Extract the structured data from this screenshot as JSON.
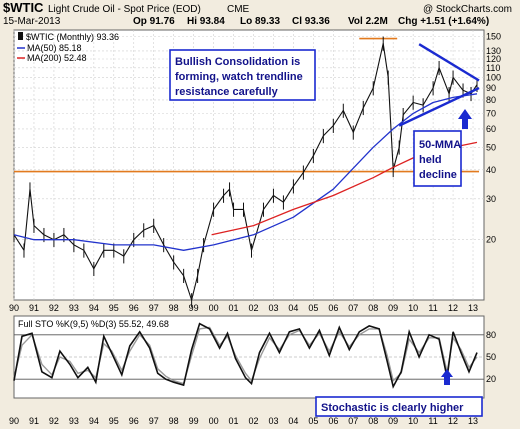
{
  "header": {
    "symbol": "$WTIC",
    "title": "Light Crude Oil - Spot Price (EOD)",
    "exchange": "CME",
    "date": "15-Mar-2013",
    "op": "Op 91.76",
    "hi": "Hi 93.84",
    "lo": "Lo 89.33",
    "cl": "Cl 93.36",
    "vol": "Vol 2.2M",
    "chg": "Chg +1.51 (+1.64%)",
    "watermark": "@ StockCharts.com"
  },
  "legend": {
    "price": "$WTIC (Monthly) 93.36",
    "ma50": "MA(50) 85.18",
    "ma200": "MA(200) 52.48"
  },
  "annotations": {
    "consolidation": [
      "Bullish Consolidation is",
      "forming, watch trendline",
      "resistance carefully"
    ],
    "ma_note": [
      "50-MMA",
      "held",
      "decline"
    ],
    "stoch_note": "Stochastic is clearly higher"
  },
  "colors": {
    "price_bars": "#111111",
    "ma50": "#2233cc",
    "ma200": "#dd2222",
    "support_line": "#e27a1e",
    "trendlines": "#1a2ad0",
    "annotation_border": "#1a2ad0",
    "annotation_text": "#12128a",
    "panel_bg": "#ffffff",
    "frame_bg": "#f2ecdf"
  },
  "chart_data": {
    "type": "line",
    "log_scale": true,
    "x_tick_labels": [
      "90",
      "91",
      "92",
      "93",
      "94",
      "95",
      "96",
      "97",
      "98",
      "99",
      "00",
      "01",
      "02",
      "03",
      "04",
      "05",
      "06",
      "07",
      "08",
      "09",
      "10",
      "11",
      "12",
      "13"
    ],
    "y_tick_labels": [
      "150",
      "130",
      "120",
      "110",
      "100",
      "90",
      "80",
      "70",
      "60",
      "50",
      "40",
      "30",
      "20"
    ],
    "ylim": [
      11,
      160
    ],
    "series": [
      {
        "name": "$WTIC (Monthly)",
        "x": [
          1990.0,
          1990.5,
          1990.8,
          1991.0,
          1991.5,
          1992.0,
          1992.5,
          1993.0,
          1993.5,
          1994.0,
          1994.5,
          1995.0,
          1995.5,
          1996.0,
          1996.5,
          1997.0,
          1997.5,
          1998.0,
          1998.5,
          1998.9,
          1999.2,
          1999.5,
          2000.0,
          2000.5,
          2000.8,
          2001.0,
          2001.5,
          2001.9,
          2002.5,
          2003.0,
          2003.5,
          2004.0,
          2004.5,
          2005.0,
          2005.5,
          2006.0,
          2006.5,
          2007.0,
          2007.5,
          2008.0,
          2008.5,
          2008.75,
          2009.0,
          2009.3,
          2009.5,
          2010.0,
          2010.5,
          2011.0,
          2011.3,
          2011.8,
          2012.0,
          2012.5,
          2012.9,
          2013.2
        ],
        "values": [
          21,
          18,
          33,
          23,
          21,
          20,
          21,
          19,
          18,
          15,
          18,
          18,
          17,
          20,
          22,
          23,
          19,
          16,
          14,
          11,
          14,
          19,
          27,
          31,
          33,
          27,
          27,
          18,
          27,
          31,
          29,
          34,
          39,
          46,
          56,
          62,
          72,
          58,
          74,
          90,
          140,
          100,
          40,
          50,
          69,
          78,
          76,
          90,
          110,
          85,
          100,
          88,
          85,
          93
        ]
      },
      {
        "name": "MA(50)",
        "x": [
          1990,
          1991,
          1993,
          1995,
          1997,
          1998.5,
          2000,
          2002,
          2004,
          2006,
          2008,
          2009,
          2010,
          2011,
          2012,
          2013.2
        ],
        "values": [
          21,
          20,
          20,
          19,
          19,
          18,
          19,
          21,
          25,
          33,
          50,
          60,
          70,
          78,
          82,
          85
        ]
      },
      {
        "name": "MA(200)",
        "x": [
          1999.9,
          2002,
          2004,
          2006,
          2008,
          2009,
          2010,
          2011,
          2012,
          2013.2
        ],
        "values": [
          21,
          23,
          27,
          31,
          37,
          41,
          45,
          47,
          50,
          52.5
        ]
      }
    ],
    "horizontal_lines": [
      {
        "label": "support",
        "y": 39.3,
        "x_range": [
          1990,
          2013.3
        ]
      },
      {
        "label": "resistance",
        "y": 147,
        "x_range": [
          2007.3,
          2009.2
        ]
      }
    ],
    "trendlines": [
      {
        "from": [
          2010.3,
          139
        ],
        "to": [
          2013.3,
          97
        ]
      },
      {
        "from": [
          2009.3,
          62
        ],
        "to": [
          2013.3,
          90
        ]
      }
    ],
    "stochastic": {
      "title": "Full STO %K(9,5) %D(3) 55.52, 49.68",
      "ylim": [
        0,
        100
      ],
      "y_tick_labels": [
        "80",
        "50",
        "20"
      ],
      "levels": [
        80,
        20
      ],
      "k": {
        "x": [
          1990.0,
          1990.4,
          1990.9,
          1991.4,
          1991.9,
          1992.3,
          1992.8,
          1993.2,
          1993.7,
          1994.1,
          1994.5,
          1994.9,
          1995.4,
          1995.8,
          1996.3,
          1996.8,
          1997.2,
          1997.6,
          1998.0,
          1998.5,
          1998.9,
          1999.3,
          1999.8,
          2000.3,
          2000.7,
          2001.1,
          2001.6,
          2001.9,
          2002.3,
          2002.8,
          2003.3,
          2003.8,
          2004.3,
          2004.8,
          2005.3,
          2005.8,
          2006.3,
          2006.8,
          2007.3,
          2007.8,
          2008.3,
          2008.7,
          2009.0,
          2009.4,
          2009.8,
          2010.3,
          2010.8,
          2011.3,
          2011.7,
          2012.0,
          2012.4,
          2012.8,
          2013.2
        ],
        "values": [
          18,
          78,
          82,
          30,
          22,
          58,
          40,
          22,
          36,
          16,
          78,
          55,
          26,
          65,
          84,
          62,
          28,
          20,
          16,
          12,
          60,
          95,
          88,
          62,
          82,
          48,
          22,
          14,
          56,
          82,
          56,
          84,
          88,
          62,
          86,
          52,
          90,
          60,
          84,
          92,
          88,
          44,
          10,
          30,
          84,
          50,
          80,
          74,
          22,
          84,
          56,
          30,
          56
        ]
      },
      "d": {
        "x": [
          1990.0,
          1990.4,
          1990.9,
          1991.4,
          1991.9,
          1992.3,
          1992.8,
          1993.2,
          1993.7,
          1994.1,
          1994.5,
          1994.9,
          1995.4,
          1995.8,
          1996.3,
          1996.8,
          1997.2,
          1997.6,
          1998.0,
          1998.5,
          1998.9,
          1999.3,
          1999.8,
          2000.3,
          2000.7,
          2001.1,
          2001.6,
          2001.9,
          2002.3,
          2002.8,
          2003.3,
          2003.8,
          2004.3,
          2004.8,
          2005.3,
          2005.8,
          2006.3,
          2006.8,
          2007.3,
          2007.8,
          2008.3,
          2008.7,
          2009.0,
          2009.4,
          2009.8,
          2010.3,
          2010.8,
          2011.3,
          2011.7,
          2012.0,
          2012.4,
          2012.8,
          2013.2
        ],
        "values": [
          22,
          66,
          80,
          40,
          26,
          50,
          44,
          28,
          32,
          22,
          68,
          58,
          32,
          58,
          80,
          66,
          34,
          24,
          18,
          14,
          52,
          88,
          90,
          66,
          78,
          52,
          28,
          18,
          48,
          76,
          60,
          80,
          86,
          66,
          82,
          58,
          84,
          64,
          80,
          88,
          88,
          52,
          18,
          28,
          74,
          56,
          76,
          76,
          30,
          76,
          60,
          36,
          50
        ]
      }
    }
  }
}
